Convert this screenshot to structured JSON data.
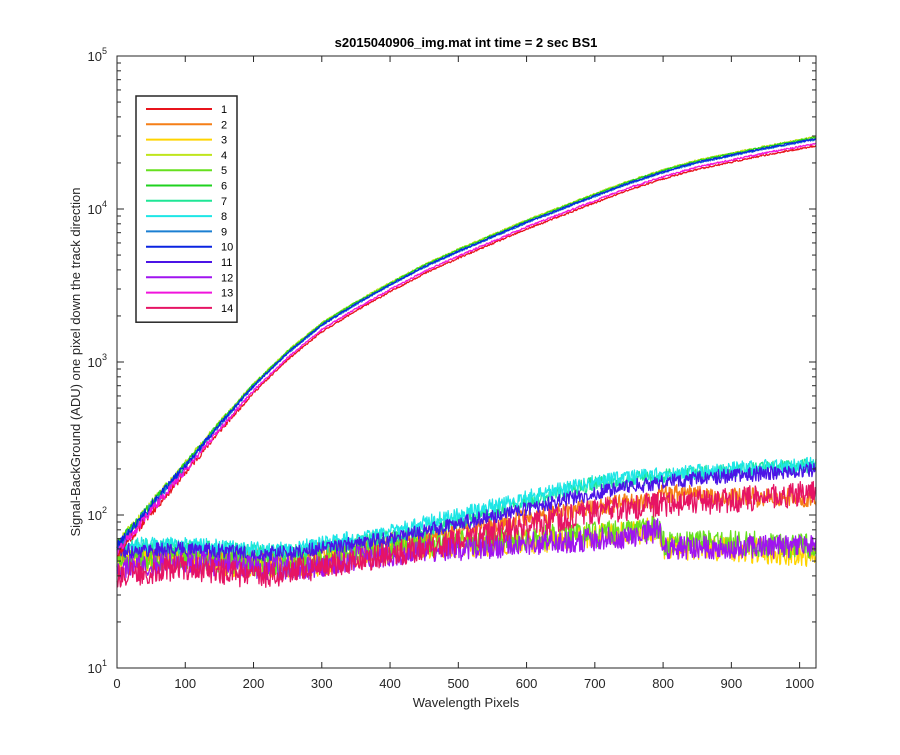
{
  "chart_data": {
    "type": "line",
    "title": "s2015040906_img.mat int time = 2 sec   BS1",
    "xlabel": "Wavelength Pixels",
    "ylabel": "Signal-BackGround (ADU) one pixel down the track direction",
    "xlim": [
      0,
      1024
    ],
    "ylim": [
      10,
      100000
    ],
    "yscale": "log",
    "xticks": [
      0,
      100,
      200,
      300,
      400,
      500,
      600,
      700,
      800,
      900,
      1000
    ],
    "xtick_labels": [
      "0",
      "100",
      "200",
      "300",
      "400",
      "500",
      "600",
      "700",
      "800",
      "900",
      "1000"
    ],
    "yticks": [
      10,
      100,
      1000,
      10000,
      100000
    ],
    "ytick_labels": [
      {
        "base": "10",
        "exp": "1"
      },
      {
        "base": "10",
        "exp": "2"
      },
      {
        "base": "10",
        "exp": "3"
      },
      {
        "base": "10",
        "exp": "4"
      },
      {
        "base": "10",
        "exp": "5"
      }
    ],
    "legend_position": "top-left",
    "series": [
      {
        "name": "1",
        "color": "#e8141c",
        "group": "upper",
        "scale": 0.9,
        "noise": 0.05,
        "seed": 11
      },
      {
        "name": "2",
        "color": "#f57f17",
        "group": "lower",
        "curve": [
          [
            0,
            55
          ],
          [
            100,
            56
          ],
          [
            200,
            52
          ],
          [
            250,
            52
          ],
          [
            300,
            58
          ],
          [
            400,
            66
          ],
          [
            500,
            80
          ],
          [
            600,
            95
          ],
          [
            700,
            112
          ],
          [
            790,
            128
          ],
          [
            800,
            140
          ],
          [
            900,
            130
          ],
          [
            1024,
            130
          ]
        ],
        "noise": 0.09,
        "seed": 21
      },
      {
        "name": "3",
        "color": "#ffd400",
        "group": "lower",
        "curve": [
          [
            0,
            48
          ],
          [
            100,
            52
          ],
          [
            200,
            46
          ],
          [
            280,
            46
          ],
          [
            350,
            55
          ],
          [
            450,
            62
          ],
          [
            550,
            65
          ],
          [
            650,
            70
          ],
          [
            750,
            75
          ],
          [
            795,
            82
          ],
          [
            800,
            62
          ],
          [
            900,
            60
          ],
          [
            1024,
            55
          ]
        ],
        "noise": 0.12,
        "seed": 31
      },
      {
        "name": "4",
        "color": "#bfe51c",
        "group": "upper",
        "scale": 1.03,
        "noise": 0.05,
        "seed": 41
      },
      {
        "name": "5",
        "color": "#66e01f",
        "group": "lower",
        "curve": [
          [
            0,
            50
          ],
          [
            100,
            54
          ],
          [
            200,
            48
          ],
          [
            280,
            48
          ],
          [
            350,
            58
          ],
          [
            450,
            64
          ],
          [
            550,
            68
          ],
          [
            650,
            72
          ],
          [
            750,
            77
          ],
          [
            795,
            85
          ],
          [
            800,
            65
          ],
          [
            900,
            66
          ],
          [
            1024,
            62
          ]
        ],
        "noise": 0.12,
        "seed": 51
      },
      {
        "name": "6",
        "color": "#1fd21f",
        "group": "upper",
        "scale": 1.02,
        "noise": 0.05,
        "seed": 61
      },
      {
        "name": "7",
        "color": "#1ee696",
        "group": "lower",
        "curve": [
          [
            0,
            62
          ],
          [
            100,
            62
          ],
          [
            200,
            58
          ],
          [
            250,
            57
          ],
          [
            300,
            62
          ],
          [
            400,
            72
          ],
          [
            500,
            90
          ],
          [
            600,
            120
          ],
          [
            700,
            160
          ],
          [
            800,
            180
          ],
          [
            900,
            195
          ],
          [
            1024,
            210
          ]
        ],
        "noise": 0.07,
        "seed": 71
      },
      {
        "name": "8",
        "color": "#1ee6e6",
        "group": "lower",
        "curve": [
          [
            0,
            64
          ],
          [
            100,
            64
          ],
          [
            200,
            60
          ],
          [
            250,
            60
          ],
          [
            300,
            65
          ],
          [
            400,
            78
          ],
          [
            500,
            100
          ],
          [
            600,
            130
          ],
          [
            700,
            165
          ],
          [
            800,
            185
          ],
          [
            900,
            200
          ],
          [
            1024,
            215
          ]
        ],
        "noise": 0.07,
        "seed": 81
      },
      {
        "name": "9",
        "color": "#1b7fd2",
        "group": "upper",
        "scale": 0.99,
        "noise": 0.05,
        "seed": 91
      },
      {
        "name": "10",
        "color": "#0a24e1",
        "group": "upper",
        "scale": 1.0,
        "noise": 0.05,
        "seed": 101
      },
      {
        "name": "11",
        "color": "#4b14e6",
        "group": "lower",
        "curve": [
          [
            0,
            58
          ],
          [
            100,
            60
          ],
          [
            200,
            56
          ],
          [
            250,
            56
          ],
          [
            300,
            60
          ],
          [
            400,
            70
          ],
          [
            500,
            88
          ],
          [
            600,
            110
          ],
          [
            700,
            140
          ],
          [
            800,
            165
          ],
          [
            900,
            180
          ],
          [
            1024,
            200
          ]
        ],
        "noise": 0.07,
        "seed": 111
      },
      {
        "name": "12",
        "color": "#a014f0",
        "group": "lower",
        "curve": [
          [
            0,
            45
          ],
          [
            100,
            50
          ],
          [
            200,
            45
          ],
          [
            280,
            45
          ],
          [
            350,
            52
          ],
          [
            450,
            58
          ],
          [
            550,
            62
          ],
          [
            650,
            67
          ],
          [
            750,
            72
          ],
          [
            795,
            80
          ],
          [
            800,
            60
          ],
          [
            900,
            62
          ],
          [
            1024,
            62
          ]
        ],
        "noise": 0.11,
        "seed": 121
      },
      {
        "name": "13",
        "color": "#f014dc",
        "group": "upper",
        "scale": 0.93,
        "noise": 0.05,
        "seed": 131
      },
      {
        "name": "14",
        "color": "#e61464",
        "group": "lower",
        "curve": [
          [
            0,
            40
          ],
          [
            100,
            46
          ],
          [
            200,
            40
          ],
          [
            250,
            42
          ],
          [
            300,
            46
          ],
          [
            400,
            55
          ],
          [
            500,
            68
          ],
          [
            600,
            85
          ],
          [
            700,
            105
          ],
          [
            800,
            118
          ],
          [
            900,
            125
          ],
          [
            1024,
            140
          ]
        ],
        "noise": 0.12,
        "seed": 141
      }
    ],
    "upper_curve": [
      [
        0,
        62
      ],
      [
        50,
        115
      ],
      [
        100,
        210
      ],
      [
        150,
        390
      ],
      [
        200,
        700
      ],
      [
        250,
        1150
      ],
      [
        300,
        1750
      ],
      [
        350,
        2400
      ],
      [
        400,
        3200
      ],
      [
        450,
        4200
      ],
      [
        500,
        5300
      ],
      [
        550,
        6600
      ],
      [
        600,
        8200
      ],
      [
        650,
        10000
      ],
      [
        700,
        12200
      ],
      [
        750,
        14800
      ],
      [
        800,
        17500
      ],
      [
        850,
        20200
      ],
      [
        900,
        22500
      ],
      [
        950,
        25000
      ],
      [
        1000,
        27500
      ],
      [
        1024,
        28800
      ]
    ]
  }
}
